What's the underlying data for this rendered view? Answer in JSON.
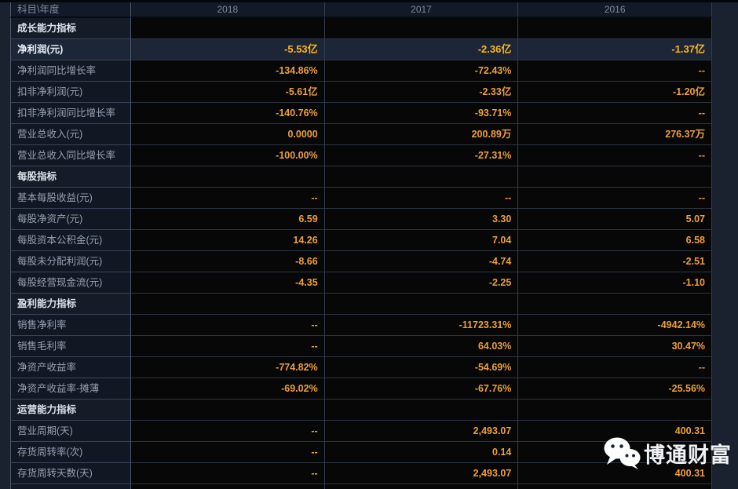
{
  "table": {
    "corner": "科目\\年度",
    "years": [
      "2018",
      "2017",
      "2016"
    ],
    "rows": [
      {
        "type": "section",
        "label": "成长能力指标"
      },
      {
        "type": "data",
        "label": "净利润(元)",
        "highlight": true,
        "values": [
          "-5.53亿",
          "-2.36亿",
          "-1.37亿"
        ]
      },
      {
        "type": "data",
        "label": "净利润同比增长率",
        "values": [
          "-134.86%",
          "-72.43%",
          "--"
        ]
      },
      {
        "type": "data",
        "label": "扣非净利润(元)",
        "values": [
          "-5.61亿",
          "-2.33亿",
          "-1.20亿"
        ]
      },
      {
        "type": "data",
        "label": "扣非净利润同比增长率",
        "values": [
          "-140.76%",
          "-93.71%",
          "--"
        ]
      },
      {
        "type": "data",
        "label": "营业总收入(元)",
        "values": [
          "0.0000",
          "200.89万",
          "276.37万"
        ]
      },
      {
        "type": "data",
        "label": "营业总收入同比增长率",
        "values": [
          "-100.00%",
          "-27.31%",
          "--"
        ]
      },
      {
        "type": "section",
        "label": "每股指标"
      },
      {
        "type": "data",
        "label": "基本每股收益(元)",
        "values": [
          "--",
          "--",
          "--"
        ]
      },
      {
        "type": "data",
        "label": "每股净资产(元)",
        "values": [
          "6.59",
          "3.30",
          "5.07"
        ]
      },
      {
        "type": "data",
        "label": "每股资本公积金(元)",
        "values": [
          "14.26",
          "7.04",
          "6.58"
        ]
      },
      {
        "type": "data",
        "label": "每股未分配利润(元)",
        "values": [
          "-8.66",
          "-4.74",
          "-2.51"
        ]
      },
      {
        "type": "data",
        "label": "每股经营现金流(元)",
        "values": [
          "-4.35",
          "-2.25",
          "-1.10"
        ]
      },
      {
        "type": "section",
        "label": "盈利能力指标"
      },
      {
        "type": "data",
        "label": "销售净利率",
        "values": [
          "--",
          "-11723.31%",
          "-4942.14%"
        ]
      },
      {
        "type": "data",
        "label": "销售毛利率",
        "values": [
          "--",
          "64.03%",
          "30.47%"
        ]
      },
      {
        "type": "data",
        "label": "净资产收益率",
        "values": [
          "-774.82%",
          "-54.69%",
          "--"
        ]
      },
      {
        "type": "data",
        "label": "净资产收益率-摊薄",
        "values": [
          "-69.02%",
          "-67.76%",
          "-25.56%"
        ]
      },
      {
        "type": "section",
        "label": "运营能力指标"
      },
      {
        "type": "data",
        "label": "营业周期(天)",
        "values": [
          "--",
          "2,493.07",
          "400.31"
        ]
      },
      {
        "type": "data",
        "label": "存货周转率(次)",
        "values": [
          "--",
          "0.14",
          ""
        ]
      },
      {
        "type": "data",
        "label": "存货周转天数(天)",
        "values": [
          "--",
          "2,493.07",
          "400.31"
        ]
      }
    ]
  },
  "watermark": {
    "text": "博通财富",
    "icon": "wechat-icon"
  },
  "colors": {
    "page_background": "#1a2230",
    "cell_background": "#060706",
    "label_background": "#111823",
    "highlight_background": "#1c2636",
    "value_orange": "#ef9f38",
    "highlight_gold": "#ffb71e",
    "label_gray": "#97a1b2",
    "section_white": "#dde4ec",
    "header_gray": "#7e8899"
  }
}
